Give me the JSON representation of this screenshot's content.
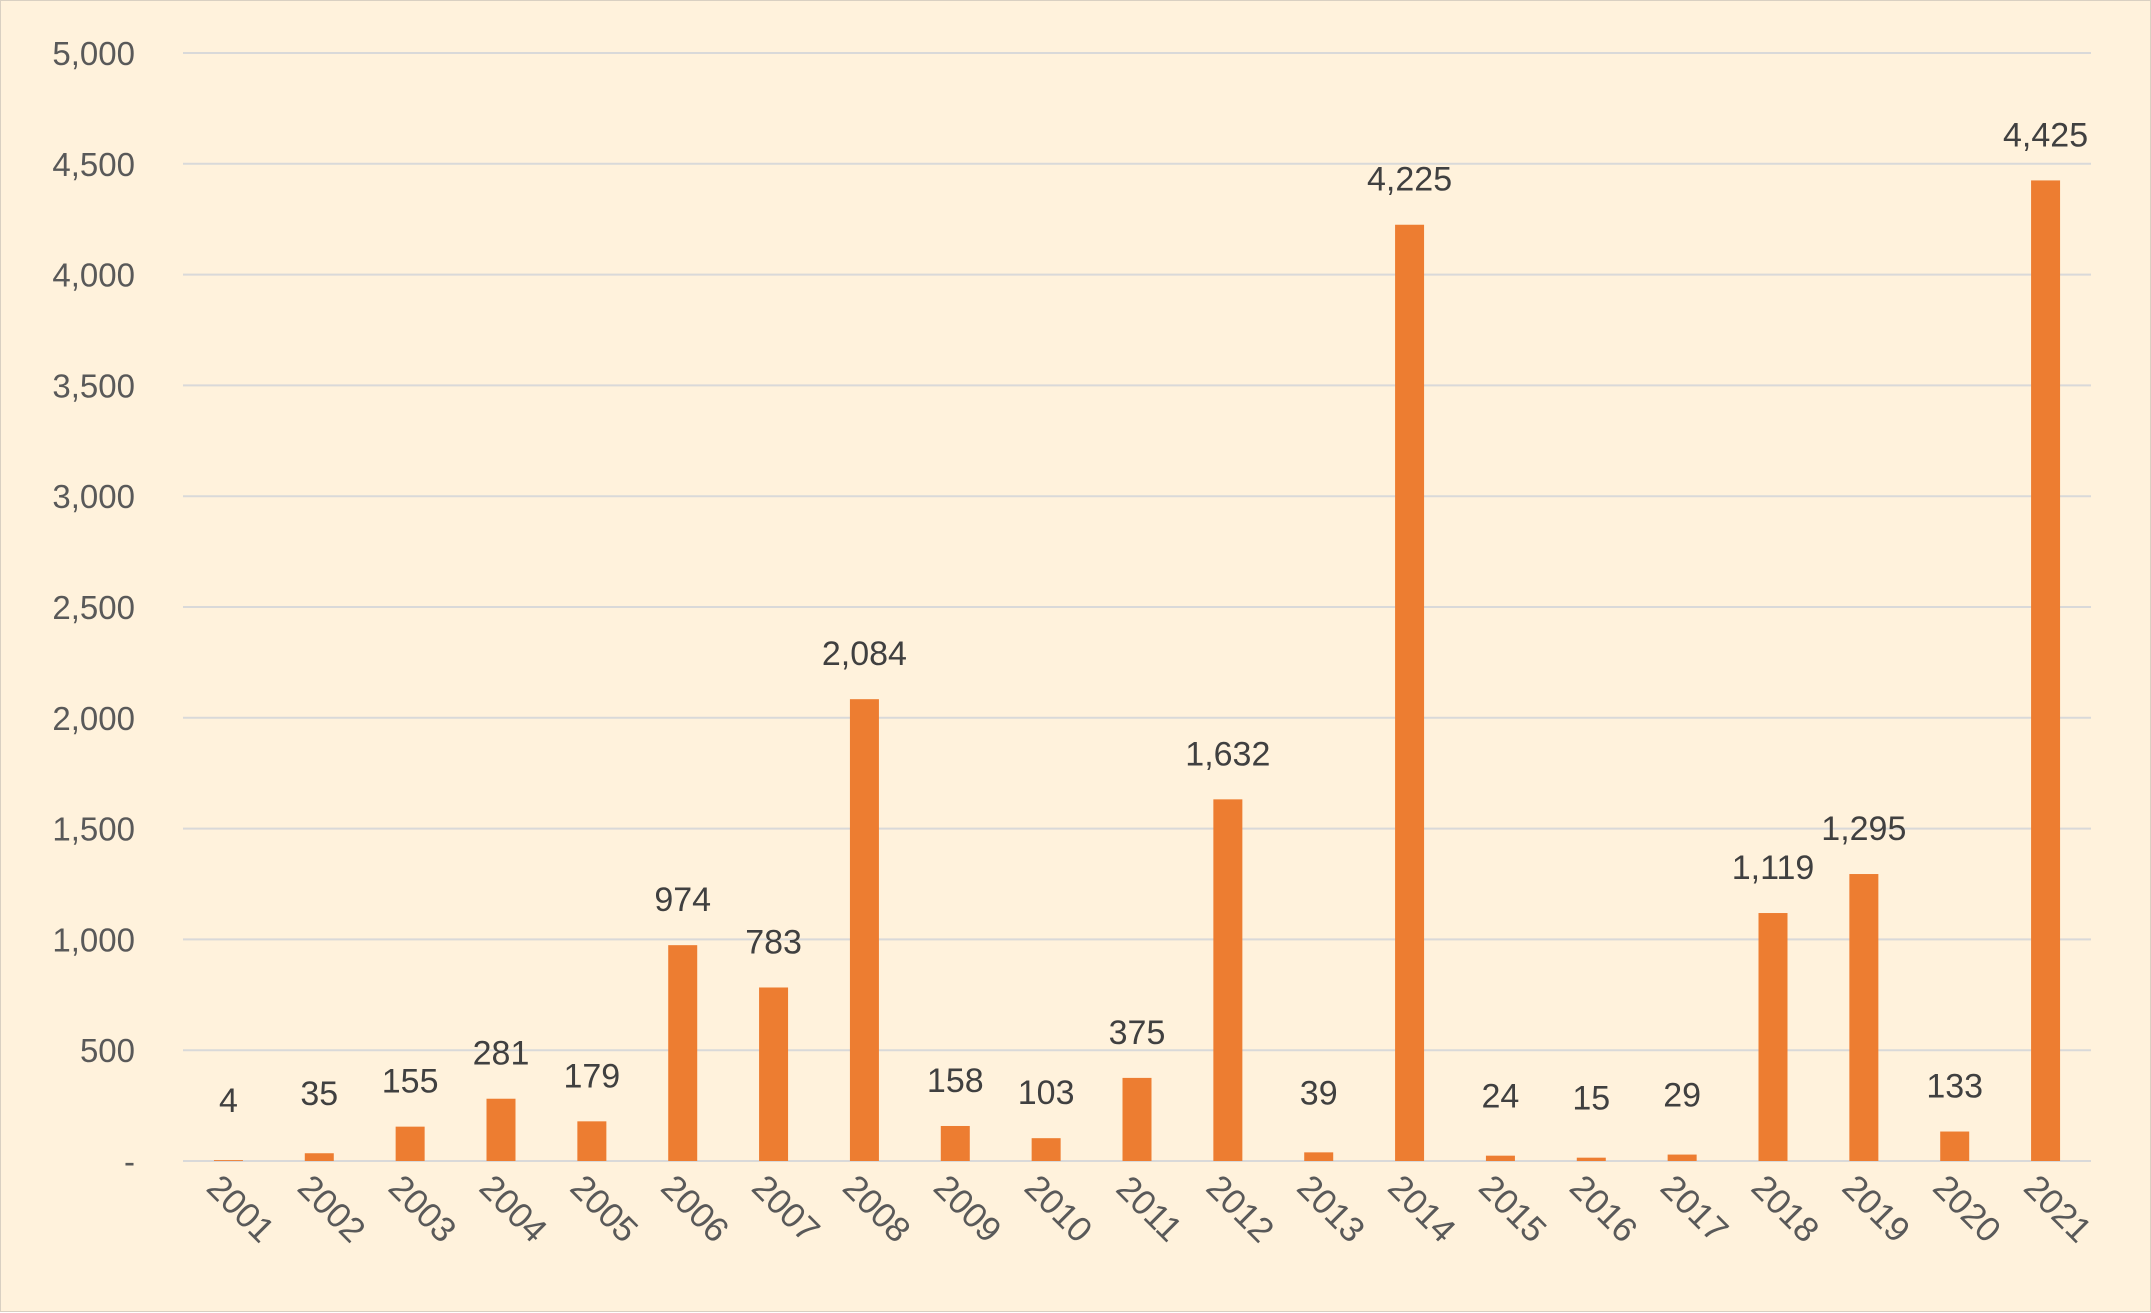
{
  "chart_data": {
    "type": "bar",
    "title": "",
    "xlabel": "",
    "ylabel": "",
    "categories": [
      "2001",
      "2002",
      "2003",
      "2004",
      "2005",
      "2006",
      "2007",
      "2008",
      "2009",
      "2010",
      "2011",
      "2012",
      "2013",
      "2014",
      "2015",
      "2016",
      "2017",
      "2018",
      "2019",
      "2020",
      "2021"
    ],
    "values": [
      4,
      35,
      155,
      281,
      179,
      974,
      783,
      2084,
      158,
      103,
      375,
      1632,
      39,
      4225,
      24,
      15,
      29,
      1119,
      1295,
      133,
      4425
    ],
    "data_labels": [
      "4",
      "35",
      "155",
      "281",
      "179",
      "974",
      "783",
      "2,084",
      "158",
      "103",
      "375",
      "1,632",
      "39",
      "4,225",
      "24",
      "15",
      "29",
      "1,119",
      "1,295",
      "133",
      "4,425"
    ],
    "ylim": [
      0,
      5000
    ],
    "yticks": [
      0,
      500,
      1000,
      1500,
      2000,
      2500,
      3000,
      3500,
      4000,
      4500,
      5000
    ],
    "ytick_labels": [
      "-",
      "500",
      "1,000",
      "1,500",
      "2,000",
      "2,500",
      "3,000",
      "3,500",
      "4,000",
      "4,500",
      "5,000"
    ],
    "grid": true,
    "legend": "none",
    "colors": {
      "bar": "#ed7d31",
      "background": "#fff2dc",
      "grid": "#d9d9d9",
      "tick_text": "#595959",
      "label_text": "#404040"
    }
  }
}
